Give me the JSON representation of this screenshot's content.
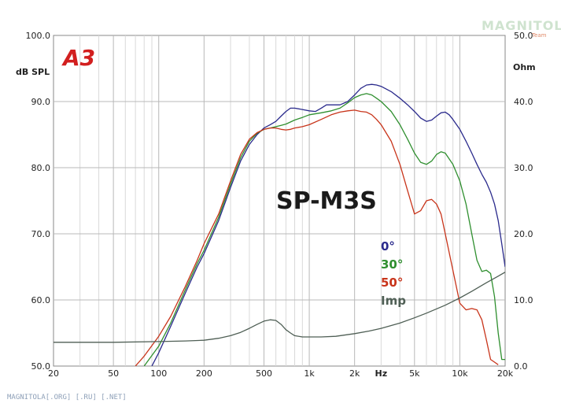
{
  "brand": {
    "logo": "A3",
    "watermark": "MAGNITOLA",
    "watermark_sub": "Team"
  },
  "footer_text": "MAGNITOLA[.ORG] [.RU] [.NET]",
  "chart_data": {
    "type": "line",
    "title": "SP-M3S",
    "xlabel": "Hz",
    "ylabel": "dB SPL",
    "y2label": "Ohm",
    "xscale": "log",
    "xlim": [
      20,
      20000
    ],
    "ylim": [
      50,
      100
    ],
    "y2lim": [
      0,
      50
    ],
    "grid": true,
    "legend_position": "center-right",
    "x_ticks": [
      {
        "value": 20,
        "label": "20"
      },
      {
        "value": 50,
        "label": "50"
      },
      {
        "value": 100,
        "label": "100"
      },
      {
        "value": 200,
        "label": "200"
      },
      {
        "value": 500,
        "label": "500"
      },
      {
        "value": 1000,
        "label": "1k"
      },
      {
        "value": 2000,
        "label": "2k"
      },
      {
        "value": 3000,
        "label": "Hz"
      },
      {
        "value": 5000,
        "label": "5k"
      },
      {
        "value": 10000,
        "label": "10k"
      },
      {
        "value": 20000,
        "label": "20k"
      }
    ],
    "y_ticks": [
      {
        "value": 100,
        "label": "100.0"
      },
      {
        "value": 90,
        "label": "90.0"
      },
      {
        "value": 80,
        "label": "80.0"
      },
      {
        "value": 70,
        "label": "70.0"
      },
      {
        "value": 60,
        "label": "60.0"
      },
      {
        "value": 50,
        "label": "50.0"
      }
    ],
    "y2_ticks": [
      {
        "value": 50,
        "label": "50.0"
      },
      {
        "value": 40,
        "label": "40.0"
      },
      {
        "value": 30,
        "label": "30.0"
      },
      {
        "value": 20,
        "label": "20.0"
      },
      {
        "value": 10,
        "label": "10.0"
      },
      {
        "value": 0,
        "label": "0.0"
      }
    ],
    "series": [
      {
        "name": "0°",
        "color": "#2a2a8c",
        "axis": "left",
        "x": [
          90,
          100,
          120,
          150,
          180,
          200,
          250,
          300,
          350,
          400,
          450,
          500,
          550,
          600,
          650,
          700,
          750,
          800,
          900,
          1000,
          1100,
          1200,
          1300,
          1400,
          1600,
          1800,
          2000,
          2200,
          2400,
          2600,
          2800,
          3000,
          3500,
          4000,
          4500,
          5000,
          5500,
          6000,
          6500,
          7000,
          7500,
          8000,
          8500,
          9000,
          10000,
          11000,
          12000,
          13000,
          14000,
          15000,
          16000,
          17000,
          18000,
          19000,
          20000
        ],
        "y": [
          50,
          52,
          56,
          61,
          65,
          67,
          72,
          77,
          81,
          83.5,
          85,
          86,
          86.5,
          87,
          87.8,
          88.5,
          89,
          89,
          88.8,
          88.6,
          88.5,
          89,
          89.5,
          89.5,
          89.5,
          90,
          91,
          92,
          92.5,
          92.6,
          92.5,
          92.3,
          91.5,
          90.5,
          89.5,
          88.5,
          87.5,
          87,
          87.2,
          87.8,
          88.3,
          88.4,
          88,
          87.3,
          85.8,
          84,
          82.2,
          80.5,
          79,
          77.8,
          76.3,
          74.5,
          72,
          68.5,
          65
        ]
      },
      {
        "name": "30°",
        "color": "#2f8f2f",
        "axis": "left",
        "x": [
          80,
          100,
          120,
          150,
          180,
          200,
          250,
          300,
          350,
          400,
          450,
          500,
          550,
          600,
          650,
          700,
          800,
          900,
          1000,
          1200,
          1400,
          1600,
          1800,
          2000,
          2200,
          2400,
          2600,
          2800,
          3000,
          3500,
          4000,
          4500,
          5000,
          5500,
          6000,
          6500,
          7000,
          7500,
          8000,
          9000,
          10000,
          11000,
          12000,
          13000,
          14000,
          15000,
          16000,
          17000,
          18000,
          19000,
          20000
        ],
        "y": [
          50,
          53,
          56.5,
          61.5,
          65.5,
          67.5,
          72.5,
          77.5,
          81.5,
          84,
          85.2,
          85.8,
          86,
          86.2,
          86.4,
          86.6,
          87.2,
          87.6,
          88,
          88.3,
          88.6,
          89,
          89.8,
          90.6,
          91,
          91.2,
          91,
          90.5,
          90,
          88.5,
          86.5,
          84.3,
          82.2,
          80.8,
          80.5,
          81,
          82,
          82.4,
          82.2,
          80.5,
          78,
          74.5,
          70,
          66,
          64.3,
          64.5,
          64,
          60.5,
          55,
          51,
          51
        ]
      },
      {
        "name": "50°",
        "color": "#c8341a",
        "axis": "left",
        "x": [
          70,
          80,
          100,
          120,
          150,
          180,
          200,
          250,
          300,
          350,
          400,
          450,
          500,
          550,
          600,
          650,
          700,
          750,
          800,
          900,
          1000,
          1200,
          1400,
          1600,
          1800,
          2000,
          2200,
          2400,
          2600,
          2800,
          3000,
          3500,
          4000,
          4500,
          5000,
          5500,
          6000,
          6500,
          7000,
          7500,
          8000,
          9000,
          10000,
          11000,
          12000,
          13000,
          14000,
          15000,
          16000,
          17000,
          18000
        ],
        "y": [
          50,
          51.5,
          54.5,
          57.5,
          62,
          66,
          68.5,
          73,
          78,
          82,
          84.3,
          85.3,
          85.8,
          86,
          86,
          85.8,
          85.7,
          85.8,
          86,
          86.2,
          86.5,
          87.3,
          88,
          88.4,
          88.6,
          88.7,
          88.5,
          88.4,
          88,
          87.3,
          86.5,
          84,
          80.5,
          76.5,
          73,
          73.5,
          75,
          75.2,
          74.5,
          73,
          70,
          64.5,
          59.5,
          58.5,
          58.7,
          58.5,
          57,
          54,
          51,
          50.6,
          50.2
        ]
      },
      {
        "name": "Imp",
        "color": "#4f5f55",
        "axis": "right",
        "x": [
          20,
          50,
          100,
          150,
          200,
          250,
          300,
          350,
          400,
          450,
          500,
          550,
          600,
          650,
          700,
          750,
          800,
          900,
          1000,
          1200,
          1500,
          2000,
          2500,
          3000,
          4000,
          5000,
          6000,
          8000,
          10000,
          12000,
          15000,
          18000,
          20000
        ],
        "y": [
          3.6,
          3.6,
          3.7,
          3.8,
          3.9,
          4.2,
          4.6,
          5.1,
          5.7,
          6.3,
          6.8,
          7.0,
          6.9,
          6.3,
          5.5,
          5.0,
          4.6,
          4.4,
          4.4,
          4.4,
          4.5,
          4.9,
          5.3,
          5.7,
          6.5,
          7.3,
          8.0,
          9.2,
          10.3,
          11.3,
          12.6,
          13.6,
          14.2
        ]
      }
    ]
  }
}
